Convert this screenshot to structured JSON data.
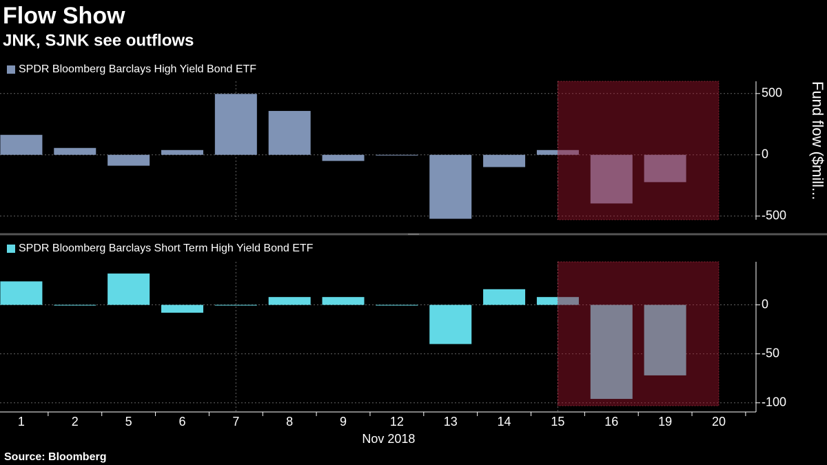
{
  "title": "Flow Show",
  "subtitle": "JNK, SJNK see outflows",
  "source": "Source: Bloomberg",
  "chart_data": [
    {
      "type": "bar",
      "y_label": "Fund flow ($mill...",
      "series": [
        {
          "name": "SPDR Bloomberg Barclays High Yield Bond ETF",
          "color": "#7f93b5",
          "values": [
            163,
            56,
            -89,
            39,
            497,
            358,
            -50,
            -5,
            -522,
            -100,
            39,
            -397,
            -223,
            null
          ]
        }
      ],
      "ylim": [
        -530,
        600
      ],
      "yticks": [
        -500,
        0,
        500
      ],
      "grid": true
    },
    {
      "type": "bar",
      "x_label": "Nov 2018",
      "categories": [
        "1",
        "2",
        "5",
        "6",
        "7",
        "8",
        "9",
        "12",
        "13",
        "14",
        "15",
        "16",
        "19",
        "20"
      ],
      "series": [
        {
          "name": "SPDR Bloomberg Barclays Short Term High Yield Bond ETF",
          "color": "#62d9e6",
          "values": [
            24,
            -0.5,
            32,
            -8,
            -0.5,
            8,
            8,
            -0.5,
            -40,
            16,
            8,
            -96,
            -72,
            null
          ]
        }
      ],
      "ylim": [
        -103,
        44
      ],
      "yticks": [
        -100,
        -50,
        0
      ],
      "grid": true
    }
  ]
}
